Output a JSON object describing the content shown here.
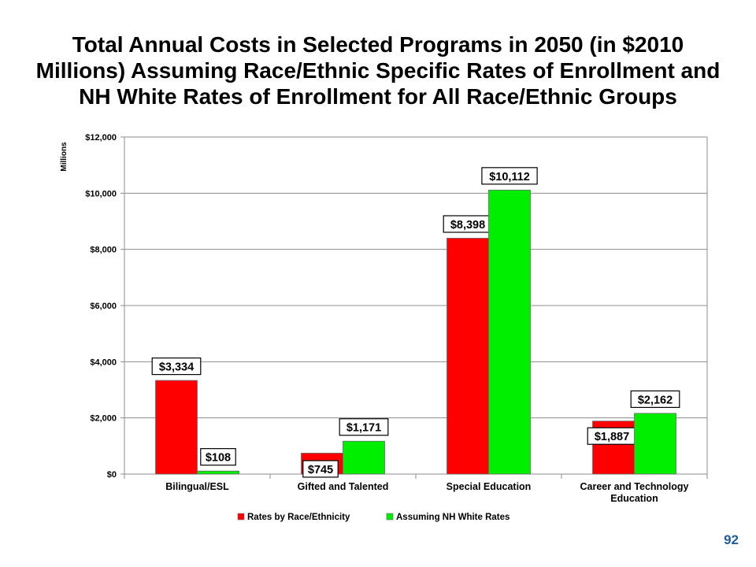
{
  "title_lines": [
    "Total Annual Costs in Selected Programs in 2050 (in $2010",
    "Millions) Assuming Race/Ethnic Specific Rates of Enrollment and",
    "NH White Rates of Enrollment for All Race/Ethnic Groups"
  ],
  "page_number": "92",
  "chart_data": {
    "type": "bar",
    "title": "Total Annual Costs in Selected Programs in 2050 (in $2010 Millions) Assuming Race/Ethnic Specific Rates of Enrollment and NH White Rates of Enrollment for All Race/Ethnic Groups",
    "xlabel": "",
    "ylabel": "Millions",
    "ylim": [
      0,
      12000
    ],
    "yticks": [
      0,
      2000,
      4000,
      6000,
      8000,
      10000,
      12000
    ],
    "ytick_labels": [
      "$0",
      "$2,000",
      "$4,000",
      "$6,000",
      "$8,000",
      "$10,000",
      "$12,000"
    ],
    "grid": true,
    "legend_position": "bottom",
    "categories": [
      [
        "Bilingual/ESL"
      ],
      [
        "Gifted and Talented"
      ],
      [
        "Special Education"
      ],
      [
        "Career and Technology",
        "Education"
      ]
    ],
    "series": [
      {
        "name": "Rates by Race/Ethnicity",
        "color": "#ff0000",
        "values": [
          3334,
          745,
          8398,
          1887
        ],
        "labels": [
          "$3,334",
          "$745",
          "$8,398",
          "$1,887"
        ]
      },
      {
        "name": "Assuming NH White Rates",
        "color": "#00ee00",
        "values": [
          108,
          1171,
          10112,
          2162
        ],
        "labels": [
          "$108",
          "$1,171",
          "$10,112",
          "$2,162"
        ]
      }
    ]
  }
}
